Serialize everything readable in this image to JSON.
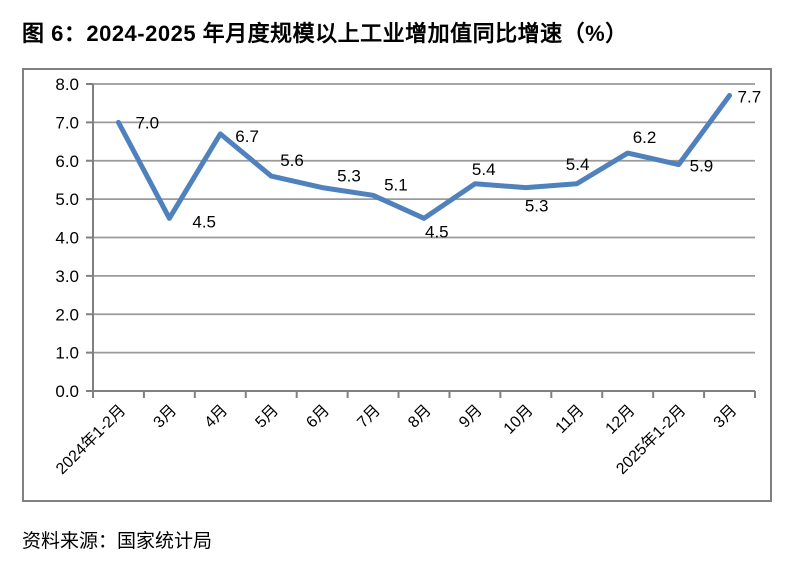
{
  "title": "图 6：2024-2025 年月度规模以上工业增加值同比增速（%）",
  "source_note": "资料来源：国家统计局",
  "chart_data": {
    "type": "line",
    "categories": [
      "2024年1-2月",
      "3月",
      "4月",
      "5月",
      "6月",
      "7月",
      "8月",
      "9月",
      "10月",
      "11月",
      "12月",
      "2025年1-2月",
      "3月"
    ],
    "values": [
      7.0,
      4.5,
      6.7,
      5.6,
      5.3,
      5.1,
      4.5,
      5.4,
      5.3,
      5.4,
      6.2,
      5.9,
      7.7
    ],
    "point_labels": [
      "7.0",
      "4.5",
      "6.7",
      "5.6",
      "5.3",
      "5.1",
      "4.5",
      "5.4",
      "5.3",
      "5.4",
      "6.2",
      "5.9",
      "7.7"
    ],
    "y_tick_labels": [
      "8.0",
      "7.0",
      "6.0",
      "5.0",
      "4.0",
      "3.0",
      "2.0",
      "1.0",
      "0.0"
    ],
    "ylim": [
      0,
      8
    ],
    "y_step": 1,
    "grid": true,
    "legend": "none",
    "title": "图 6：2024-2025 年月度规模以上工业增加值同比增速（%）",
    "xlabel": "",
    "ylabel": "",
    "colors": {
      "line": "#4F81BD",
      "gridline": "#9a9a9a",
      "axis": "#808080",
      "frame_border": "#808080",
      "text": "#000000",
      "background": "#ffffff"
    }
  }
}
